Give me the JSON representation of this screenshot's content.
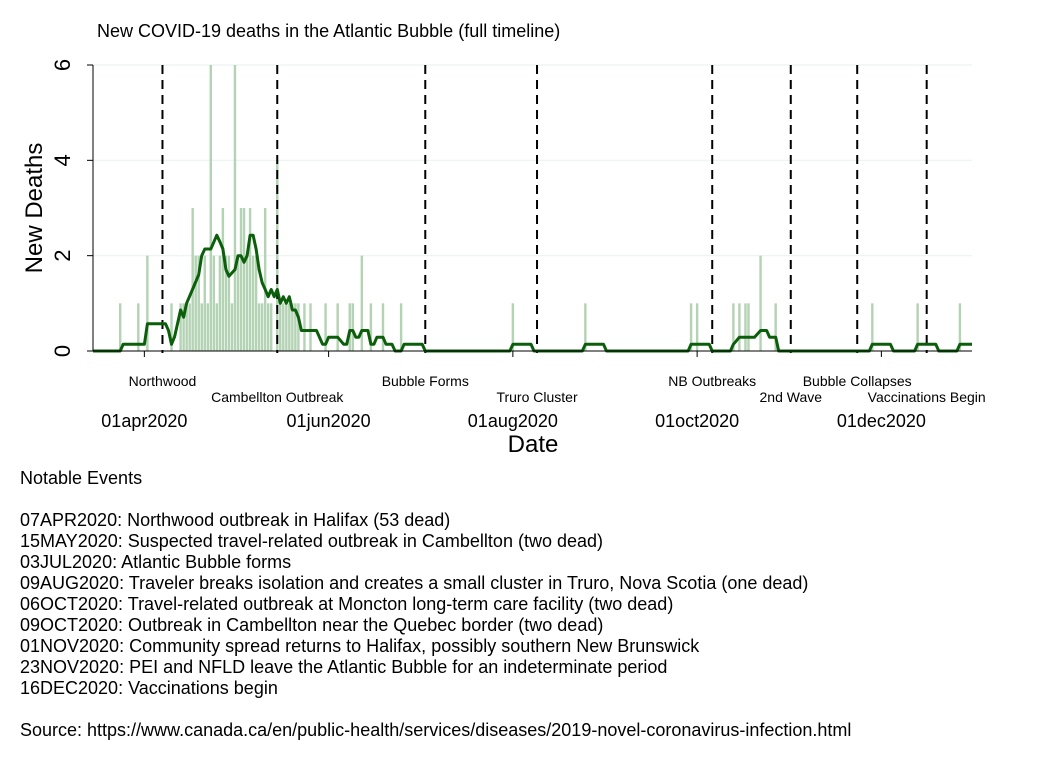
{
  "chart_data": {
    "type": "bar+line",
    "title": "New COVID-19 deaths in the Atlantic Bubble (full timeline)",
    "xlabel": "Date",
    "ylabel": "New Deaths",
    "ylim": [
      0,
      6
    ],
    "yticks": [
      0,
      2,
      4,
      6
    ],
    "xlim": [
      "2020-03-15",
      "2020-12-31"
    ],
    "xticks": [
      {
        "date": "2020-04-01",
        "label": "01apr2020"
      },
      {
        "date": "2020-06-01",
        "label": "01jun2020"
      },
      {
        "date": "2020-08-01",
        "label": "01aug2020"
      },
      {
        "date": "2020-10-01",
        "label": "01oct2020"
      },
      {
        "date": "2020-12-01",
        "label": "01dec2020"
      }
    ],
    "grid": true,
    "bar_color": "#b4d2b4",
    "line_color": "#0b5f0b",
    "bars": [
      {
        "date": "2020-03-24",
        "value": 1
      },
      {
        "date": "2020-03-30",
        "value": 1
      },
      {
        "date": "2020-04-02",
        "value": 2
      },
      {
        "date": "2020-04-10",
        "value": 1
      },
      {
        "date": "2020-04-13",
        "value": 1
      },
      {
        "date": "2020-04-14",
        "value": 1
      },
      {
        "date": "2020-04-15",
        "value": 1
      },
      {
        "date": "2020-04-16",
        "value": 1
      },
      {
        "date": "2020-04-17",
        "value": 3
      },
      {
        "date": "2020-04-18",
        "value": 2
      },
      {
        "date": "2020-04-19",
        "value": 2
      },
      {
        "date": "2020-04-20",
        "value": 1
      },
      {
        "date": "2020-04-21",
        "value": 2
      },
      {
        "date": "2020-04-22",
        "value": 1
      },
      {
        "date": "2020-04-23",
        "value": 6
      },
      {
        "date": "2020-04-24",
        "value": 2
      },
      {
        "date": "2020-04-25",
        "value": 1
      },
      {
        "date": "2020-04-26",
        "value": 2
      },
      {
        "date": "2020-04-27",
        "value": 3
      },
      {
        "date": "2020-04-28",
        "value": 2
      },
      {
        "date": "2020-04-29",
        "value": 2
      },
      {
        "date": "2020-04-30",
        "value": 1
      },
      {
        "date": "2020-05-01",
        "value": 6
      },
      {
        "date": "2020-05-02",
        "value": 2
      },
      {
        "date": "2020-05-03",
        "value": 3
      },
      {
        "date": "2020-05-04",
        "value": 3
      },
      {
        "date": "2020-05-05",
        "value": 2
      },
      {
        "date": "2020-05-06",
        "value": 3
      },
      {
        "date": "2020-05-07",
        "value": 2
      },
      {
        "date": "2020-05-08",
        "value": 2
      },
      {
        "date": "2020-05-09",
        "value": 1
      },
      {
        "date": "2020-05-10",
        "value": 1
      },
      {
        "date": "2020-05-11",
        "value": 3
      },
      {
        "date": "2020-05-12",
        "value": 1
      },
      {
        "date": "2020-05-13",
        "value": 1
      },
      {
        "date": "2020-05-15",
        "value": 4
      },
      {
        "date": "2020-05-16",
        "value": 1
      },
      {
        "date": "2020-05-17",
        "value": 1
      },
      {
        "date": "2020-05-18",
        "value": 1
      },
      {
        "date": "2020-05-19",
        "value": 1
      },
      {
        "date": "2020-05-20",
        "value": 1
      },
      {
        "date": "2020-05-21",
        "value": 1
      },
      {
        "date": "2020-05-22",
        "value": 1
      },
      {
        "date": "2020-05-24",
        "value": 1
      },
      {
        "date": "2020-05-26",
        "value": 1
      },
      {
        "date": "2020-05-31",
        "value": 1
      },
      {
        "date": "2020-06-04",
        "value": 1
      },
      {
        "date": "2020-06-08",
        "value": 1
      },
      {
        "date": "2020-06-09",
        "value": 1
      },
      {
        "date": "2020-06-12",
        "value": 2
      },
      {
        "date": "2020-06-15",
        "value": 1
      },
      {
        "date": "2020-06-19",
        "value": 1
      },
      {
        "date": "2020-06-25",
        "value": 1
      },
      {
        "date": "2020-08-01",
        "value": 1
      },
      {
        "date": "2020-08-25",
        "value": 1
      },
      {
        "date": "2020-09-29",
        "value": 1
      },
      {
        "date": "2020-10-01",
        "value": 1
      },
      {
        "date": "2020-10-13",
        "value": 1
      },
      {
        "date": "2020-10-15",
        "value": 1
      },
      {
        "date": "2020-10-17",
        "value": 1
      },
      {
        "date": "2020-10-18",
        "value": 1
      },
      {
        "date": "2020-10-22",
        "value": 2
      },
      {
        "date": "2020-10-27",
        "value": 1
      },
      {
        "date": "2020-11-28",
        "value": 1
      },
      {
        "date": "2020-12-13",
        "value": 1
      },
      {
        "date": "2020-12-27",
        "value": 1
      }
    ],
    "line_points": [
      {
        "date": "2020-03-15",
        "value": 0
      },
      {
        "date": "2020-03-24",
        "value": 0
      },
      {
        "date": "2020-03-25",
        "value": 0.14
      },
      {
        "date": "2020-03-30",
        "value": 0.14
      },
      {
        "date": "2020-03-31",
        "value": 0.14
      },
      {
        "date": "2020-04-01",
        "value": 0.14
      },
      {
        "date": "2020-04-02",
        "value": 0.57
      },
      {
        "date": "2020-04-08",
        "value": 0.57
      },
      {
        "date": "2020-04-09",
        "value": 0.43
      },
      {
        "date": "2020-04-10",
        "value": 0.14
      },
      {
        "date": "2020-04-11",
        "value": 0.3
      },
      {
        "date": "2020-04-13",
        "value": 0.86
      },
      {
        "date": "2020-04-14",
        "value": 0.71
      },
      {
        "date": "2020-04-15",
        "value": 1.0
      },
      {
        "date": "2020-04-17",
        "value": 1.3
      },
      {
        "date": "2020-04-19",
        "value": 1.6
      },
      {
        "date": "2020-04-20",
        "value": 2.0
      },
      {
        "date": "2020-04-21",
        "value": 2.14
      },
      {
        "date": "2020-04-23",
        "value": 2.14
      },
      {
        "date": "2020-04-25",
        "value": 2.43
      },
      {
        "date": "2020-04-26",
        "value": 2.29
      },
      {
        "date": "2020-04-27",
        "value": 2.14
      },
      {
        "date": "2020-04-28",
        "value": 1.71
      },
      {
        "date": "2020-04-29",
        "value": 1.57
      },
      {
        "date": "2020-05-01",
        "value": 1.71
      },
      {
        "date": "2020-05-02",
        "value": 2.0
      },
      {
        "date": "2020-05-03",
        "value": 2.0
      },
      {
        "date": "2020-05-04",
        "value": 1.86
      },
      {
        "date": "2020-05-05",
        "value": 2.0
      },
      {
        "date": "2020-05-06",
        "value": 2.43
      },
      {
        "date": "2020-05-07",
        "value": 2.43
      },
      {
        "date": "2020-05-08",
        "value": 2.14
      },
      {
        "date": "2020-05-09",
        "value": 1.71
      },
      {
        "date": "2020-05-10",
        "value": 1.43
      },
      {
        "date": "2020-05-11",
        "value": 1.29
      },
      {
        "date": "2020-05-12",
        "value": 1.14
      },
      {
        "date": "2020-05-13",
        "value": 1.29
      },
      {
        "date": "2020-05-14",
        "value": 1.14
      },
      {
        "date": "2020-05-15",
        "value": 1.29
      },
      {
        "date": "2020-05-16",
        "value": 1.0
      },
      {
        "date": "2020-05-17",
        "value": 1.14
      },
      {
        "date": "2020-05-18",
        "value": 1.0
      },
      {
        "date": "2020-05-19",
        "value": 1.14
      },
      {
        "date": "2020-05-20",
        "value": 0.86
      },
      {
        "date": "2020-05-21",
        "value": 0.86
      },
      {
        "date": "2020-05-22",
        "value": 0.71
      },
      {
        "date": "2020-05-23",
        "value": 0.43
      },
      {
        "date": "2020-05-28",
        "value": 0.43
      },
      {
        "date": "2020-05-30",
        "value": 0.14
      },
      {
        "date": "2020-05-31",
        "value": 0.14
      },
      {
        "date": "2020-06-01",
        "value": 0.29
      },
      {
        "date": "2020-06-03",
        "value": 0.29
      },
      {
        "date": "2020-06-04",
        "value": 0.29
      },
      {
        "date": "2020-06-06",
        "value": 0.14
      },
      {
        "date": "2020-06-07",
        "value": 0.14
      },
      {
        "date": "2020-06-08",
        "value": 0.43
      },
      {
        "date": "2020-06-09",
        "value": 0.43
      },
      {
        "date": "2020-06-10",
        "value": 0.29
      },
      {
        "date": "2020-06-11",
        "value": 0.29
      },
      {
        "date": "2020-06-12",
        "value": 0.43
      },
      {
        "date": "2020-06-14",
        "value": 0.43
      },
      {
        "date": "2020-06-15",
        "value": 0.14
      },
      {
        "date": "2020-06-16",
        "value": 0.14
      },
      {
        "date": "2020-06-17",
        "value": 0.29
      },
      {
        "date": "2020-06-19",
        "value": 0.29
      },
      {
        "date": "2020-06-20",
        "value": 0.14
      },
      {
        "date": "2020-06-22",
        "value": 0.14
      },
      {
        "date": "2020-06-23",
        "value": 0.0
      },
      {
        "date": "2020-06-25",
        "value": 0.0
      },
      {
        "date": "2020-06-26",
        "value": 0.14
      },
      {
        "date": "2020-07-02",
        "value": 0.14
      },
      {
        "date": "2020-07-03",
        "value": 0.0
      },
      {
        "date": "2020-07-31",
        "value": 0.0
      },
      {
        "date": "2020-08-01",
        "value": 0.14
      },
      {
        "date": "2020-08-07",
        "value": 0.14
      },
      {
        "date": "2020-08-08",
        "value": 0.0
      },
      {
        "date": "2020-08-24",
        "value": 0.0
      },
      {
        "date": "2020-08-25",
        "value": 0.14
      },
      {
        "date": "2020-08-31",
        "value": 0.14
      },
      {
        "date": "2020-09-01",
        "value": 0.0
      },
      {
        "date": "2020-09-28",
        "value": 0.0
      },
      {
        "date": "2020-09-29",
        "value": 0.14
      },
      {
        "date": "2020-10-05",
        "value": 0.14
      },
      {
        "date": "2020-10-06",
        "value": 0.0
      },
      {
        "date": "2020-10-12",
        "value": 0.0
      },
      {
        "date": "2020-10-13",
        "value": 0.14
      },
      {
        "date": "2020-10-15",
        "value": 0.29
      },
      {
        "date": "2020-10-17",
        "value": 0.29
      },
      {
        "date": "2020-10-18",
        "value": 0.29
      },
      {
        "date": "2020-10-20",
        "value": 0.29
      },
      {
        "date": "2020-10-22",
        "value": 0.43
      },
      {
        "date": "2020-10-24",
        "value": 0.43
      },
      {
        "date": "2020-10-25",
        "value": 0.29
      },
      {
        "date": "2020-10-27",
        "value": 0.29
      },
      {
        "date": "2020-10-28",
        "value": 0.0
      },
      {
        "date": "2020-11-27",
        "value": 0.0
      },
      {
        "date": "2020-11-28",
        "value": 0.14
      },
      {
        "date": "2020-12-04",
        "value": 0.14
      },
      {
        "date": "2020-12-05",
        "value": 0.0
      },
      {
        "date": "2020-12-12",
        "value": 0.0
      },
      {
        "date": "2020-12-13",
        "value": 0.14
      },
      {
        "date": "2020-12-19",
        "value": 0.14
      },
      {
        "date": "2020-12-20",
        "value": 0.0
      },
      {
        "date": "2020-12-26",
        "value": 0.0
      },
      {
        "date": "2020-12-27",
        "value": 0.14
      },
      {
        "date": "2020-12-31",
        "value": 0.14
      }
    ],
    "events": [
      {
        "date": "2020-04-07",
        "label": "Northwood",
        "row": 1
      },
      {
        "date": "2020-05-15",
        "label": "Cambellton Outbreak",
        "row": 2
      },
      {
        "date": "2020-07-03",
        "label": "Bubble Forms",
        "row": 1
      },
      {
        "date": "2020-08-09",
        "label": "Truro Cluster",
        "row": 2
      },
      {
        "date": "2020-10-06",
        "label": "NB Outbreaks",
        "row": 1
      },
      {
        "date": "2020-11-01",
        "label": "2nd Wave",
        "row": 2
      },
      {
        "date": "2020-11-23",
        "label": "Bubble Collapses",
        "row": 1
      },
      {
        "date": "2020-12-16",
        "label": "Vaccinations Begin",
        "row": 2
      }
    ]
  },
  "notes": {
    "heading": "Notable Events",
    "items": [
      "07APR2020: Northwood outbreak in Halifax (53 dead)",
      "15MAY2020: Suspected travel-related outbreak in Cambellton (two dead)",
      "03JUL2020: Atlantic Bubble forms",
      "09AUG2020: Traveler breaks isolation and creates a small cluster in Truro, Nova Scotia (one dead)",
      "06OCT2020: Travel-related outbreak at Moncton long-term care facility (two dead)",
      "09OCT2020: Outbreak in Cambellton near the Quebec border (two dead)",
      "01NOV2020: Community spread returns to Halifax, possibly southern New Brunswick",
      "23NOV2020: PEI and NFLD leave the Atlantic Bubble for an indeterminate period",
      "16DEC2020: Vaccinations begin"
    ],
    "source": "Source: https://www.canada.ca/en/public-health/services/diseases/2019-novel-coronavirus-infection.html"
  }
}
